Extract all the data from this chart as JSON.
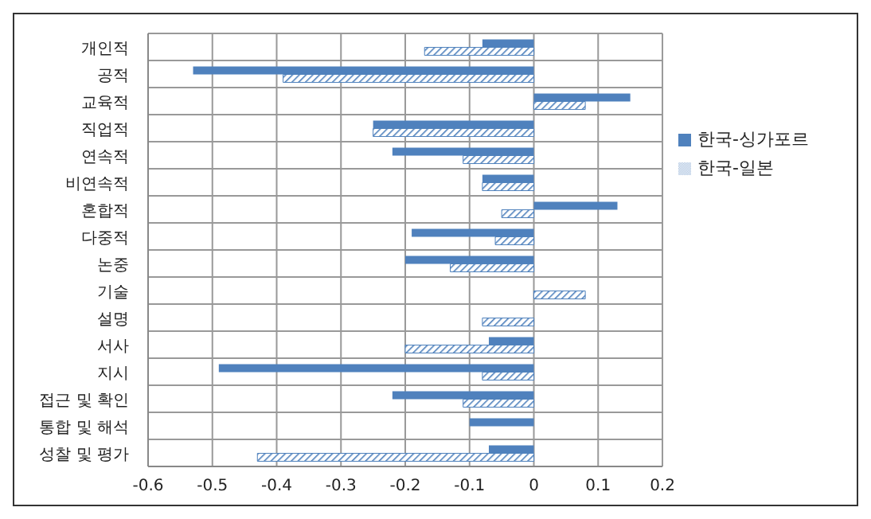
{
  "chart_data": {
    "type": "bar",
    "orientation": "horizontal",
    "categories": [
      "개인적",
      "공적",
      "교육적",
      "직업적",
      "연속적",
      "비연속적",
      "혼합적",
      "다중적",
      "논중",
      "기술",
      "설명",
      "서사",
      "지시",
      "접근 및 확인",
      "통합 및 해석",
      "성찰 및 평가"
    ],
    "series": [
      {
        "name": "한국-싱가포르",
        "color": "#4f81bd",
        "values": [
          -0.08,
          -0.53,
          0.15,
          -0.25,
          -0.22,
          -0.08,
          0.13,
          -0.19,
          -0.2,
          0,
          0,
          -0.07,
          -0.49,
          -0.22,
          -0.1,
          -0.07
        ]
      },
      {
        "name": "한국-일본",
        "color": "#4f81bd",
        "values": [
          -0.17,
          -0.39,
          0.08,
          -0.25,
          -0.11,
          -0.08,
          -0.05,
          -0.06,
          -0.13,
          0.08,
          -0.08,
          -0.2,
          -0.08,
          -0.11,
          0,
          -0.43
        ]
      }
    ],
    "xlim": [
      -0.6,
      0.2
    ],
    "xticks": [
      -0.6,
      -0.5,
      -0.4,
      -0.3,
      -0.2,
      -0.1,
      0,
      0.1,
      0.2
    ],
    "grid": true,
    "legend": "right"
  }
}
